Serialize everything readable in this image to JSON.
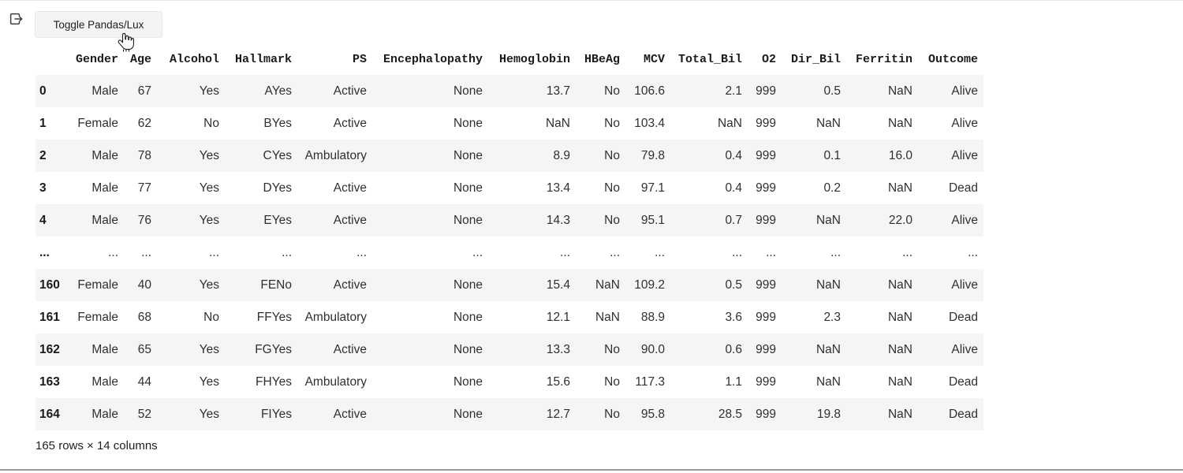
{
  "page": {
    "toggle_button_label": "Toggle Pandas/Lux",
    "footer": "165 rows × 14 columns"
  },
  "colors": {
    "stripe": "#f5f5f5",
    "button_bg": "#f4f4f4",
    "bottom_rule": "#979797"
  },
  "table": {
    "columns": [
      "Gender",
      "Age",
      "Alcohol",
      "Hallmark",
      "PS",
      "Encephalopathy",
      "Hemoglobin",
      "HBeAg",
      "MCV",
      "Total_Bil",
      "O2",
      "Dir_Bil",
      "Ferritin",
      "Outcome"
    ],
    "rows": [
      {
        "index": "0",
        "cells": [
          "Male",
          "67",
          "Yes",
          "AYes",
          "Active",
          "None",
          "13.7",
          "No",
          "106.6",
          "2.1",
          "999",
          "0.5",
          "NaN",
          "Alive"
        ]
      },
      {
        "index": "1",
        "cells": [
          "Female",
          "62",
          "No",
          "BYes",
          "Active",
          "None",
          "NaN",
          "No",
          "103.4",
          "NaN",
          "999",
          "NaN",
          "NaN",
          "Alive"
        ]
      },
      {
        "index": "2",
        "cells": [
          "Male",
          "78",
          "Yes",
          "CYes",
          "Ambulatory",
          "None",
          "8.9",
          "No",
          "79.8",
          "0.4",
          "999",
          "0.1",
          "16.0",
          "Alive"
        ]
      },
      {
        "index": "3",
        "cells": [
          "Male",
          "77",
          "Yes",
          "DYes",
          "Active",
          "None",
          "13.4",
          "No",
          "97.1",
          "0.4",
          "999",
          "0.2",
          "NaN",
          "Dead"
        ]
      },
      {
        "index": "4",
        "cells": [
          "Male",
          "76",
          "Yes",
          "EYes",
          "Active",
          "None",
          "14.3",
          "No",
          "95.1",
          "0.7",
          "999",
          "NaN",
          "22.0",
          "Alive"
        ]
      },
      {
        "index": "...",
        "cells": [
          "...",
          "...",
          "...",
          "...",
          "...",
          "...",
          "...",
          "...",
          "...",
          "...",
          "...",
          "...",
          "...",
          "..."
        ]
      },
      {
        "index": "160",
        "cells": [
          "Female",
          "40",
          "Yes",
          "FENo",
          "Active",
          "None",
          "15.4",
          "NaN",
          "109.2",
          "0.5",
          "999",
          "NaN",
          "NaN",
          "Alive"
        ]
      },
      {
        "index": "161",
        "cells": [
          "Female",
          "68",
          "No",
          "FFYes",
          "Ambulatory",
          "None",
          "12.1",
          "NaN",
          "88.9",
          "3.6",
          "999",
          "2.3",
          "NaN",
          "Dead"
        ]
      },
      {
        "index": "162",
        "cells": [
          "Male",
          "65",
          "Yes",
          "FGYes",
          "Active",
          "None",
          "13.3",
          "No",
          "90.0",
          "0.6",
          "999",
          "NaN",
          "NaN",
          "Alive"
        ]
      },
      {
        "index": "163",
        "cells": [
          "Male",
          "44",
          "Yes",
          "FHYes",
          "Ambulatory",
          "None",
          "15.6",
          "No",
          "117.3",
          "1.1",
          "999",
          "NaN",
          "NaN",
          "Dead"
        ]
      },
      {
        "index": "164",
        "cells": [
          "Male",
          "52",
          "Yes",
          "FIYes",
          "Active",
          "None",
          "12.7",
          "No",
          "95.8",
          "28.5",
          "999",
          "19.8",
          "NaN",
          "Dead"
        ]
      }
    ]
  },
  "icons": {
    "output_collapse": "export-arrow-icon",
    "cursor": "hand-pointer-cursor"
  }
}
